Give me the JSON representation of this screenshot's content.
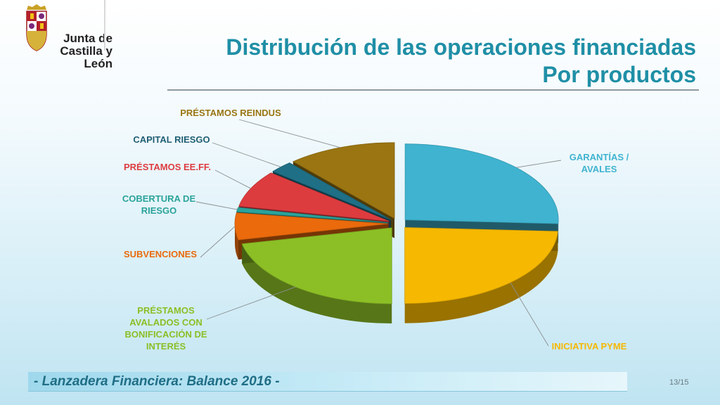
{
  "logo": {
    "line1": "Junta de",
    "line2": "Castilla y León",
    "emblem_icon": "coat-of-arms-icon"
  },
  "title": {
    "line1": "Distribución de las operaciones financiadas",
    "line2": "Por productos"
  },
  "footer": {
    "text": "- Lanzadera Financiera: Balance 2016 -",
    "page": "13/15"
  },
  "colors": {
    "title": "#1f8fa6",
    "garantias": "#3fb3cf",
    "iniciativa": "#f6b800",
    "prestamos_avalados": "#8cbf26",
    "subvenciones": "#ea6a0c",
    "cobertura": "#2aa39b",
    "prestamos_eeff": "#dd3c3f",
    "capital_riesgo": "#1f6f86",
    "reindus": "#9a7512"
  },
  "chart_data": {
    "type": "pie",
    "style": "3d-exploded",
    "slices": [
      {
        "label": "GARANTÍAS / AVALES",
        "value": 25.8,
        "color": "#3fb3cf"
      },
      {
        "label": "INICIATIVA PYME",
        "value": 24.2,
        "color": "#f6b800"
      },
      {
        "label": "PRÉSTAMOS AVALADOS CON BONIFICACIÓN DE INTERÉS",
        "value": 21.6,
        "color": "#8cbf26"
      },
      {
        "label": "SUBVENCIONES",
        "value": 5.7,
        "color": "#ea6a0c"
      },
      {
        "label": "COBERTURA DE RIESGO",
        "value": 0.9,
        "color": "#2aa39b"
      },
      {
        "label": "PRÉSTAMOS EE.FF.",
        "value": 7.8,
        "color": "#dd3c3f"
      },
      {
        "label": "CAPITAL RIESGO",
        "value": 2.5,
        "color": "#1f6f86"
      },
      {
        "label": "PRÉSTAMOS REINDUS",
        "value": 11.5,
        "color": "#9a7512"
      }
    ]
  }
}
